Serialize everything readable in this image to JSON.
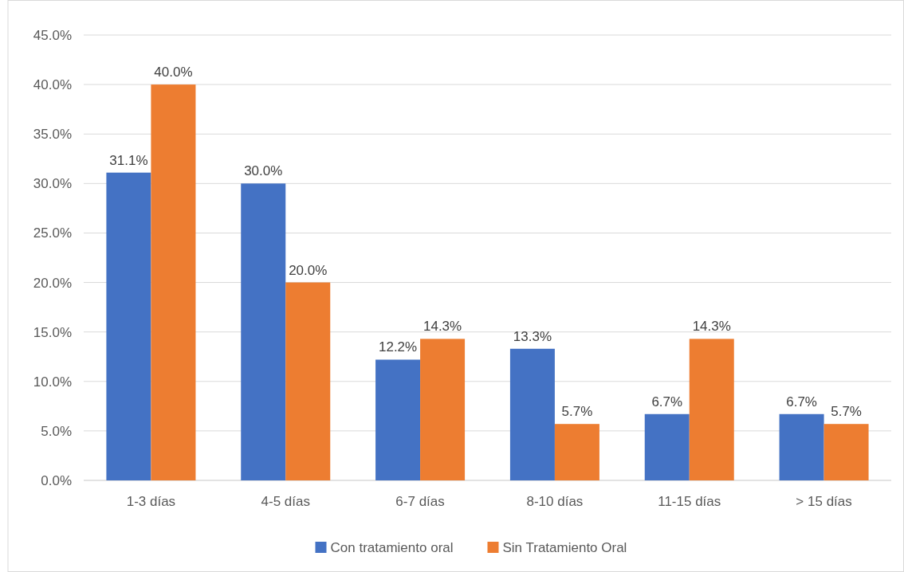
{
  "chart_data": {
    "type": "bar",
    "categories": [
      "1-3 días",
      "4-5 días",
      "6-7 días",
      "8-10 días",
      "11-15 días",
      "> 15 días"
    ],
    "series": [
      {
        "name": "Con tratamiento oral",
        "color": "#4472c4",
        "values": [
          31.1,
          30.0,
          12.2,
          13.3,
          6.7,
          6.7
        ],
        "value_labels": [
          "31.1%",
          "30.0%",
          "12.2%",
          "13.3%",
          "6.7%",
          "6.7%"
        ]
      },
      {
        "name": "Sin Tratamiento Oral",
        "color": "#ed7d31",
        "values": [
          40.0,
          20.0,
          14.3,
          5.7,
          14.3,
          5.7
        ],
        "value_labels": [
          "40.0%",
          "20.0%",
          "14.3%",
          "5.7%",
          "14.3%",
          "5.7%"
        ]
      }
    ],
    "ylim": [
      0,
      45
    ],
    "yticks": [
      {
        "value": 0,
        "label": "0.0%"
      },
      {
        "value": 5,
        "label": "5.0%"
      },
      {
        "value": 10,
        "label": "10.0%"
      },
      {
        "value": 15,
        "label": "15.0%"
      },
      {
        "value": 20,
        "label": "20.0%"
      },
      {
        "value": 25,
        "label": "25.0%"
      },
      {
        "value": 30,
        "label": "30.0%"
      },
      {
        "value": 35,
        "label": "35.0%"
      },
      {
        "value": 40,
        "label": "40.0%"
      },
      {
        "value": 45,
        "label": "45.0%"
      }
    ],
    "grid": "y",
    "legend": "bottom"
  }
}
